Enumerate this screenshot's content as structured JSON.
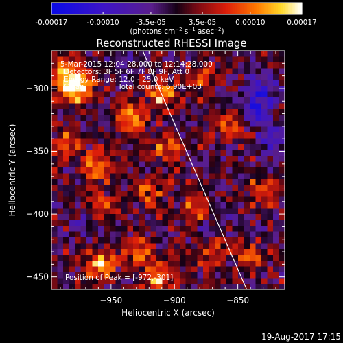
{
  "chart_data": {
    "type": "heatmap",
    "title": "Reconstructed RHESSI Image",
    "xlabel": "Heliocentric X (arcsec)",
    "ylabel": "Heliocentric Y (arcsec)",
    "xlim": [
      -997,
      -813
    ],
    "ylim": [
      -460,
      -270
    ],
    "xticks": [
      -950,
      -900,
      -850
    ],
    "yticks": [
      -300,
      -350,
      -400,
      -450
    ],
    "colorbar": {
      "range": [
        -0.00017,
        0.00017
      ],
      "ticks": [
        "-0.00017",
        "-0.00010",
        "-3.5e-05",
        "3.5e-05",
        "0.00010",
        "0.00017"
      ],
      "tick_values": [
        -0.00017,
        -0.0001,
        -3.5e-05,
        3.5e-05,
        0.0001,
        0.00017
      ],
      "label": "(photons cm^-2 s^-1 asec^-2)",
      "colormap": "blue-purple-red-orange-yellow-white"
    },
    "annotations": [
      "5-Mar-2015 12:04:28.000 to 12:14:28.000",
      "Detectors: 3F 5F 6F 7F 8F 9F, Att 0",
      "Energy Range: 12.0 - 25.0 keV",
      "Clean",
      "Total counts: 6.90E+03",
      "Position of Peak = [-972,-301]"
    ],
    "limb_line": {
      "points": [
        [
          -925,
          -270
        ],
        [
          -843,
          -460
        ]
      ],
      "color": "#ffffff"
    },
    "bright_spots": [
      {
        "x": -985,
        "y": -290,
        "value": 0.00017
      },
      {
        "x": -975,
        "y": -300,
        "value": 0.00016
      },
      {
        "x": -935,
        "y": -323,
        "value": 0.00014
      },
      {
        "x": -910,
        "y": -305,
        "value": 0.00012
      },
      {
        "x": -962,
        "y": -362,
        "value": 0.00012
      },
      {
        "x": -905,
        "y": -350,
        "value": 0.0001
      },
      {
        "x": -955,
        "y": -394,
        "value": 0.0001
      },
      {
        "x": -922,
        "y": -383,
        "value": 9e-05
      },
      {
        "x": -885,
        "y": -398,
        "value": 9e-05
      },
      {
        "x": -958,
        "y": -440,
        "value": 0.00013
      },
      {
        "x": -912,
        "y": -450,
        "value": 0.00015
      },
      {
        "x": -930,
        "y": -430,
        "value": 0.0001
      },
      {
        "x": -870,
        "y": -430,
        "value": 0.0001
      },
      {
        "x": -840,
        "y": -435,
        "value": 9e-05
      },
      {
        "x": -830,
        "y": -380,
        "value": 8e-05
      },
      {
        "x": -855,
        "y": -330,
        "value": 8e-05
      },
      {
        "x": -880,
        "y": -290,
        "value": 7e-05
      },
      {
        "x": -985,
        "y": -345,
        "value": 9e-05
      }
    ],
    "dark_spots": [
      {
        "x": -835,
        "y": -318,
        "value": -0.00012
      },
      {
        "x": -830,
        "y": -300,
        "value": -0.0001
      },
      {
        "x": -822,
        "y": -340,
        "value": -9e-05
      },
      {
        "x": -970,
        "y": -408,
        "value": -7e-05
      },
      {
        "x": -873,
        "y": -412,
        "value": -6e-05
      },
      {
        "x": -940,
        "y": -280,
        "value": -5e-05
      }
    ]
  },
  "footer": {
    "date": "19-Aug-2017 17:15"
  }
}
